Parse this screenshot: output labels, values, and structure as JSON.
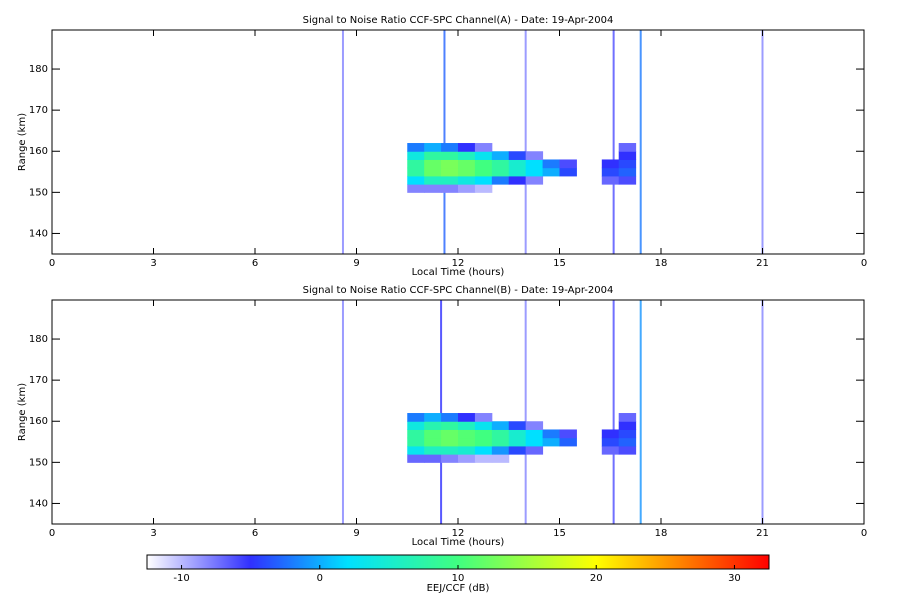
{
  "chart_data": [
    {
      "type": "heatmap",
      "title": "Signal to Noise Ratio CCF-SPC Channel(A) - Date: 19-Apr-2004",
      "xlabel": "Local Time (hours)",
      "ylabel": "Range (km)",
      "xlim": [
        0,
        24
      ],
      "xticks": [
        0,
        3,
        6,
        9,
        12,
        15,
        18,
        21,
        {
          "value": 24,
          "label": "0"
        }
      ],
      "ylim": [
        135,
        189.5
      ],
      "yticks": [
        140,
        150,
        160,
        170,
        180
      ],
      "x": [
        10.5,
        11,
        11.5,
        12,
        12.5,
        13,
        13.5,
        14,
        14.5,
        15,
        15.5,
        16.25,
        16.75,
        17.25
      ],
      "y": [
        150,
        152,
        154,
        156,
        158,
        160,
        162
      ],
      "z": [
        [
          -8,
          -8,
          -8,
          -9,
          -10,
          null,
          null,
          null,
          null,
          null,
          null,
          null,
          null
        ],
        [
          2,
          6,
          6,
          4,
          2,
          -2,
          -5,
          -8,
          null,
          null,
          null,
          -7,
          -6
        ],
        [
          8,
          12,
          13,
          12,
          10,
          8,
          5,
          2,
          0,
          -4,
          null,
          -4,
          -3
        ],
        [
          8,
          12,
          13,
          12,
          10,
          8,
          5,
          2,
          -2,
          -6,
          null,
          -5,
          -4
        ],
        [
          4,
          8,
          8,
          6,
          3,
          0,
          -4,
          -8,
          null,
          null,
          null,
          null,
          -5
        ],
        [
          -2,
          0,
          -2,
          -5,
          -8,
          null,
          null,
          null,
          null,
          null,
          null,
          null,
          -7
        ]
      ],
      "stripes_x": [
        8.6,
        11.6,
        14.0,
        16.6,
        17.4,
        21.0
      ],
      "stripes_values": [
        -8,
        -3,
        -8,
        -6,
        -2,
        -8
      ]
    },
    {
      "type": "heatmap",
      "title": "Signal to Noise Ratio CCF-SPC Channel(B) - Date: 19-Apr-2004",
      "xlabel": "Local Time (hours)",
      "ylabel": "Range (km)",
      "xlim": [
        0,
        24
      ],
      "xticks": [
        0,
        3,
        6,
        9,
        12,
        15,
        18,
        21,
        {
          "value": 24,
          "label": "0"
        }
      ],
      "ylim": [
        135,
        189.5
      ],
      "yticks": [
        140,
        150,
        160,
        170,
        180
      ],
      "x": [
        10.5,
        11,
        11.5,
        12,
        12.5,
        13,
        13.5,
        14,
        14.5,
        15,
        15.5,
        16.25,
        16.75,
        17.25
      ],
      "y": [
        150,
        152,
        154,
        156,
        158,
        160,
        162
      ],
      "z": [
        [
          -7,
          -7,
          -8,
          -9,
          -10,
          -10,
          null,
          null,
          null,
          null,
          null,
          null,
          null
        ],
        [
          3,
          6,
          6,
          5,
          2,
          -1,
          -4,
          -7,
          null,
          null,
          null,
          -7,
          -6
        ],
        [
          8,
          11,
          12,
          11,
          10,
          8,
          5,
          2,
          0,
          -3,
          null,
          -4,
          -3
        ],
        [
          8,
          11,
          12,
          11,
          10,
          8,
          5,
          2,
          -2,
          -6,
          null,
          -5,
          -4
        ],
        [
          4,
          7,
          8,
          6,
          3,
          0,
          -4,
          -8,
          null,
          null,
          null,
          null,
          -5
        ],
        [
          -2,
          0,
          -2,
          -5,
          -8,
          null,
          null,
          null,
          null,
          null,
          null,
          null,
          -7
        ]
      ],
      "stripes_x": [
        8.6,
        11.5,
        14.0,
        16.6,
        17.4,
        21.0
      ],
      "stripes_values": [
        -8,
        -5,
        -8,
        -6,
        -1,
        -8
      ]
    }
  ],
  "colorbar": {
    "label": "EEJ/CCF (dB)",
    "clim": [
      -12.5,
      32.5
    ],
    "ticks": [
      -10,
      0,
      10,
      20,
      30
    ],
    "colorscale": [
      [
        -12.5,
        "#ffffff"
      ],
      [
        -5,
        "#3030ff"
      ],
      [
        2,
        "#00e0ff"
      ],
      [
        10,
        "#40ff80"
      ],
      [
        20,
        "#ffff00"
      ],
      [
        32.5,
        "#ff0000"
      ]
    ]
  }
}
